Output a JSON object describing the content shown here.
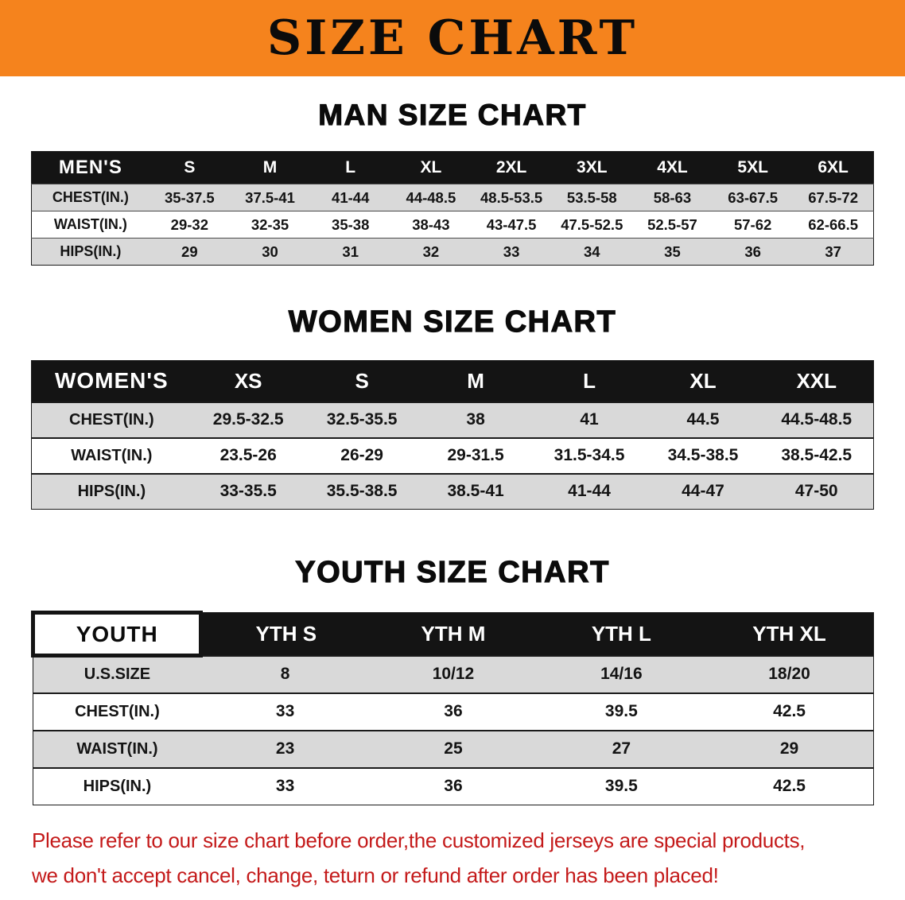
{
  "banner": {
    "title": "SIZE CHART"
  },
  "colors": {
    "banner_bg": "#f5831d",
    "table_header_bg": "#141414",
    "row_stripe": "#d9d9d9",
    "note_text": "#c41a1a"
  },
  "sections": [
    {
      "id": "mens",
      "heading": "MAN SIZE CHART",
      "table": {
        "title": "MEN'S",
        "title_inverted": false,
        "sizes": [
          "S",
          "M",
          "L",
          "XL",
          "2XL",
          "3XL",
          "4XL",
          "5XL",
          "6XL"
        ],
        "rows": [
          {
            "label": "CHEST(IN.)",
            "values": [
              "35-37.5",
              "37.5-41",
              "41-44",
              "44-48.5",
              "48.5-53.5",
              "53.5-58",
              "58-63",
              "63-67.5",
              "67.5-72"
            ]
          },
          {
            "label": "WAIST(IN.)",
            "values": [
              "29-32",
              "32-35",
              "35-38",
              "38-43",
              "43-47.5",
              "47.5-52.5",
              "52.5-57",
              "57-62",
              "62-66.5"
            ]
          },
          {
            "label": "HIPS(IN.)",
            "values": [
              "29",
              "30",
              "31",
              "32",
              "33",
              "34",
              "35",
              "36",
              "37"
            ]
          }
        ]
      }
    },
    {
      "id": "womens",
      "heading": "WOMEN SIZE CHART",
      "table": {
        "title": "WOMEN'S",
        "title_inverted": false,
        "sizes": [
          "XS",
          "S",
          "M",
          "L",
          "XL",
          "XXL"
        ],
        "rows": [
          {
            "label": "CHEST(IN.)",
            "values": [
              "29.5-32.5",
              "32.5-35.5",
              "38",
              "41",
              "44.5",
              "44.5-48.5"
            ]
          },
          {
            "label": "WAIST(IN.)",
            "values": [
              "23.5-26",
              "26-29",
              "29-31.5",
              "31.5-34.5",
              "34.5-38.5",
              "38.5-42.5"
            ]
          },
          {
            "label": "HIPS(IN.)",
            "values": [
              "33-35.5",
              "35.5-38.5",
              "38.5-41",
              "41-44",
              "44-47",
              "47-50"
            ]
          }
        ]
      }
    },
    {
      "id": "youth",
      "heading": "YOUTH SIZE CHART",
      "table": {
        "title": "YOUTH",
        "title_inverted": true,
        "sizes": [
          "YTH S",
          "YTH M",
          "YTH L",
          "YTH XL"
        ],
        "rows": [
          {
            "label": "U.S.SIZE",
            "values": [
              "8",
              "10/12",
              "14/16",
              "18/20"
            ]
          },
          {
            "label": "CHEST(IN.)",
            "values": [
              "33",
              "36",
              "39.5",
              "42.5"
            ]
          },
          {
            "label": "WAIST(IN.)",
            "values": [
              "23",
              "25",
              "27",
              "29"
            ]
          },
          {
            "label": "HIPS(IN.)",
            "values": [
              "33",
              "36",
              "39.5",
              "42.5"
            ]
          }
        ]
      }
    }
  ],
  "note": {
    "lines": [
      "Please refer to our size chart before order,the customized jerseys are special products,",
      "we don't accept cancel, change, teturn or refund after order has been placed!"
    ]
  }
}
